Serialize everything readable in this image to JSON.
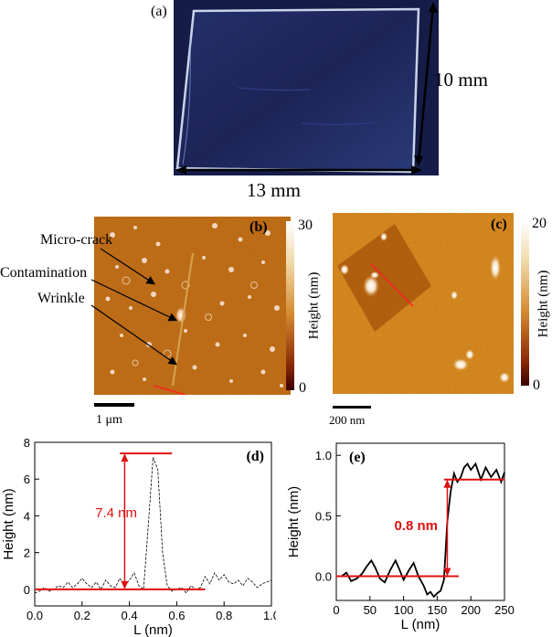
{
  "panel_a": {
    "label": "(a)",
    "height_dim": "10 mm",
    "width_dim": "13 mm",
    "colors": {
      "sample": "#1c2457",
      "edge": "#c9d4ea"
    }
  },
  "panel_b": {
    "label": "(b)",
    "annotations": [
      "Micro-crack",
      "Contamination",
      "Wrinkle"
    ],
    "scalebar": "1 μm",
    "colorbar": {
      "max": "30",
      "min": "0",
      "label": "Height (nm)"
    }
  },
  "panel_c": {
    "label": "(c)",
    "scalebar": "200 nm",
    "colorbar": {
      "max": "20",
      "min": "0",
      "label": "Height (nm)"
    }
  },
  "chart_data": [
    {
      "type": "line",
      "panel": "(d)",
      "xlabel": "L (nm)",
      "ylabel": "Height (nm)",
      "xlim": [
        0.0,
        1.0
      ],
      "ylim": [
        -0.9,
        8
      ],
      "xticks": [
        "0.0",
        "0.2",
        "0.4",
        "0.6",
        "0.8",
        "1.0"
      ],
      "yticks": [
        "0",
        "2",
        "4",
        "6",
        "8"
      ],
      "annotation": "7.4 nm",
      "ref_lines": [
        0.0,
        7.4
      ],
      "x": [
        0.0,
        0.02,
        0.04,
        0.06,
        0.08,
        0.1,
        0.12,
        0.14,
        0.16,
        0.18,
        0.2,
        0.22,
        0.24,
        0.26,
        0.28,
        0.3,
        0.32,
        0.34,
        0.36,
        0.38,
        0.4,
        0.42,
        0.44,
        0.46,
        0.48,
        0.5,
        0.52,
        0.54,
        0.56,
        0.58,
        0.6,
        0.62,
        0.64,
        0.66,
        0.68,
        0.7,
        0.72,
        0.74,
        0.76,
        0.78,
        0.8,
        0.82,
        0.84,
        0.86,
        0.88,
        0.9,
        0.92,
        0.94,
        0.96,
        0.98,
        1.0
      ],
      "y": [
        -0.2,
        -0.1,
        0.1,
        -0.1,
        0.0,
        0.2,
        0.1,
        0.4,
        0.1,
        0.3,
        0.6,
        0.3,
        0.1,
        0.4,
        0.0,
        0.5,
        0.2,
        0.1,
        0.6,
        0.2,
        0.5,
        0.9,
        0.2,
        0.0,
        3.5,
        7.2,
        6.5,
        2.0,
        0.2,
        -0.1,
        0.0,
        0.1,
        -0.2,
        0.2,
        0.0,
        0.1,
        0.7,
        0.3,
        0.9,
        0.5,
        0.8,
        0.4,
        0.3,
        0.5,
        0.2,
        0.6,
        0.4,
        0.1,
        0.3,
        0.4,
        0.5
      ]
    },
    {
      "type": "line",
      "panel": "(e)",
      "xlabel": "L (nm)",
      "ylabel": "Height (nm)",
      "xlim": [
        0,
        250
      ],
      "ylim": [
        -0.2,
        1.1
      ],
      "xticks": [
        "0",
        "50",
        "100",
        "150",
        "200",
        "250"
      ],
      "yticks": [
        "0.0",
        "0.5",
        "1.0"
      ],
      "annotation": "0.8 nm",
      "ref_lines": [
        0.0,
        0.8
      ],
      "x": [
        0,
        8,
        15,
        22,
        30,
        38,
        45,
        52,
        58,
        65,
        72,
        80,
        88,
        95,
        100,
        108,
        115,
        122,
        130,
        135,
        140,
        145,
        150,
        155,
        160,
        165,
        170,
        175,
        180,
        185,
        190,
        195,
        200,
        207,
        215,
        222,
        230,
        238,
        245,
        250
      ],
      "y": [
        0.0,
        0.0,
        0.03,
        -0.04,
        -0.02,
        0.02,
        0.08,
        0.13,
        0.07,
        -0.02,
        -0.05,
        0.05,
        0.13,
        0.04,
        -0.03,
        0.05,
        0.11,
        0.0,
        -0.08,
        -0.15,
        -0.13,
        -0.17,
        -0.14,
        -0.12,
        -0.03,
        0.45,
        0.7,
        0.85,
        0.78,
        0.82,
        0.9,
        0.93,
        0.88,
        0.93,
        0.8,
        0.9,
        0.82,
        0.88,
        0.78,
        0.86
      ]
    }
  ]
}
